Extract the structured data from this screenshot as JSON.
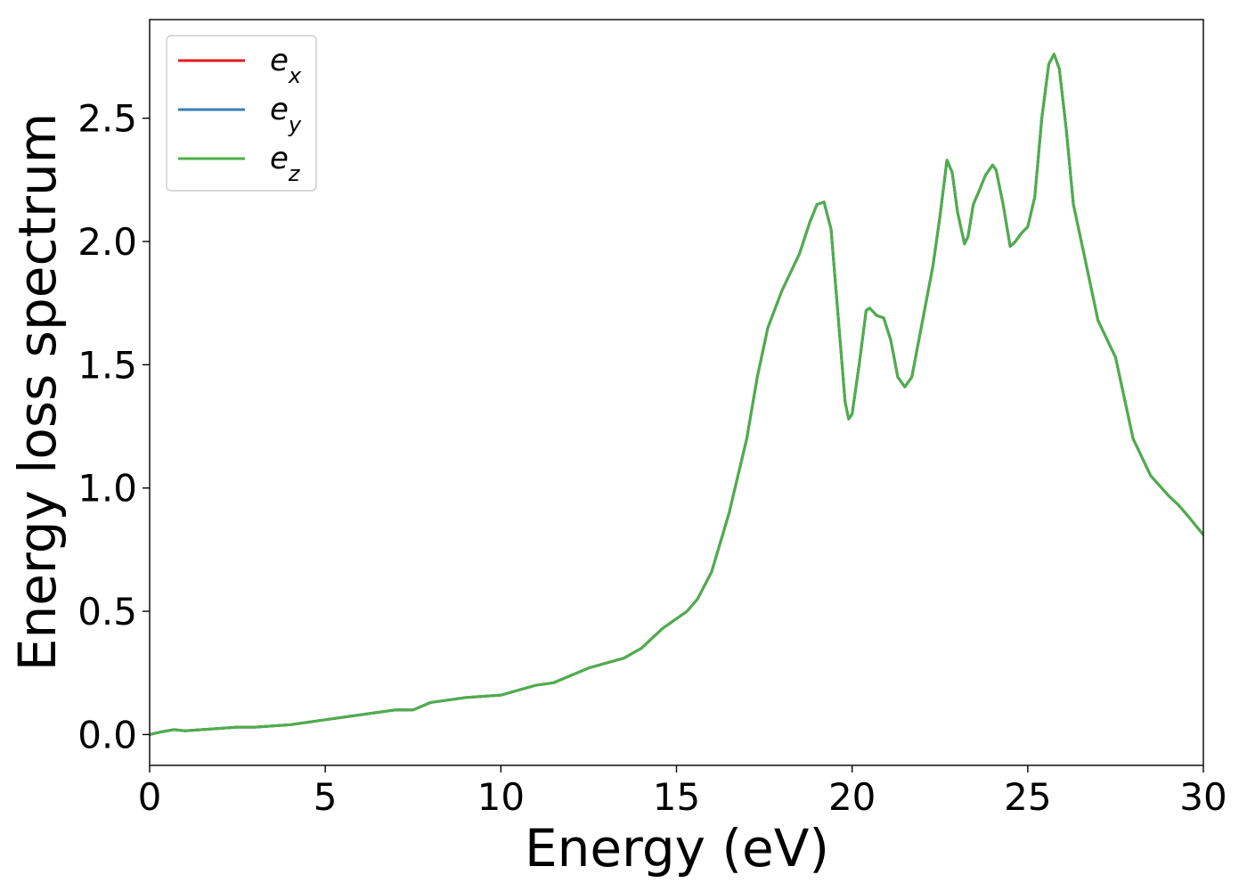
{
  "chart_data": {
    "type": "line",
    "title": "",
    "xlabel": "Energy (eV)",
    "ylabel": "Energy loss spectrum",
    "xlim": [
      0,
      30
    ],
    "ylim": [
      -0.125,
      2.9
    ],
    "xticks": [
      0,
      5,
      10,
      15,
      20,
      25,
      30
    ],
    "xtick_labels": [
      "0",
      "5",
      "10",
      "15",
      "20",
      "25",
      "30"
    ],
    "yticks": [
      0.0,
      0.5,
      1.0,
      1.5,
      2.0,
      2.5
    ],
    "ytick_labels": [
      "0.0",
      "0.5",
      "1.0",
      "1.5",
      "2.0",
      "2.5"
    ],
    "grid": false,
    "legend_position": "top-left",
    "x": [
      0,
      0.3,
      0.7,
      1.0,
      1.5,
      2.0,
      2.5,
      3.0,
      3.5,
      4.0,
      4.5,
      5.0,
      5.5,
      6.0,
      6.5,
      7.0,
      7.5,
      8.0,
      8.5,
      9.0,
      9.5,
      10.0,
      10.5,
      11.0,
      11.5,
      12.0,
      12.5,
      13.0,
      13.5,
      14.0,
      14.3,
      14.6,
      15.0,
      15.3,
      15.6,
      16.0,
      16.5,
      17.0,
      17.3,
      17.6,
      18.0,
      18.5,
      18.8,
      19.0,
      19.2,
      19.4,
      19.6,
      19.8,
      19.9,
      20.0,
      20.2,
      20.4,
      20.5,
      20.7,
      20.9,
      21.1,
      21.3,
      21.5,
      21.7,
      21.9,
      22.1,
      22.3,
      22.5,
      22.7,
      22.85,
      23.0,
      23.2,
      23.3,
      23.45,
      23.6,
      23.8,
      24.0,
      24.1,
      24.3,
      24.5,
      24.65,
      24.8,
      25.0,
      25.2,
      25.4,
      25.6,
      25.75,
      25.9,
      26.1,
      26.3,
      26.6,
      27.0,
      27.5,
      28.0,
      28.5,
      29.0,
      29.3,
      29.6,
      30.0
    ],
    "y_shared": [
      0.0,
      0.01,
      0.02,
      0.015,
      0.02,
      0.025,
      0.03,
      0.03,
      0.035,
      0.04,
      0.05,
      0.06,
      0.07,
      0.08,
      0.09,
      0.1,
      0.1,
      0.13,
      0.14,
      0.15,
      0.155,
      0.16,
      0.18,
      0.2,
      0.21,
      0.24,
      0.27,
      0.29,
      0.31,
      0.35,
      0.39,
      0.43,
      0.47,
      0.5,
      0.55,
      0.66,
      0.9,
      1.2,
      1.45,
      1.65,
      1.8,
      1.95,
      2.08,
      2.15,
      2.16,
      2.05,
      1.7,
      1.35,
      1.28,
      1.3,
      1.5,
      1.72,
      1.73,
      1.7,
      1.69,
      1.6,
      1.45,
      1.41,
      1.45,
      1.6,
      1.75,
      1.9,
      2.1,
      2.33,
      2.28,
      2.12,
      1.99,
      2.02,
      2.15,
      2.2,
      2.27,
      2.31,
      2.29,
      2.15,
      1.98,
      2.0,
      2.03,
      2.06,
      2.18,
      2.5,
      2.72,
      2.76,
      2.7,
      2.45,
      2.15,
      1.95,
      1.68,
      1.53,
      1.2,
      1.05,
      0.97,
      0.93,
      0.88,
      0.81
    ],
    "series": [
      {
        "name": "e_x",
        "label_base": "e",
        "label_sub": "x",
        "color": "#e41a1c",
        "values_ref": "y_shared"
      },
      {
        "name": "e_y",
        "label_base": "e",
        "label_sub": "y",
        "color": "#377eb8",
        "values_ref": "y_shared"
      },
      {
        "name": "e_z",
        "label_base": "e",
        "label_sub": "z",
        "color": "#4daf4a",
        "values_ref": "y_shared"
      }
    ]
  }
}
